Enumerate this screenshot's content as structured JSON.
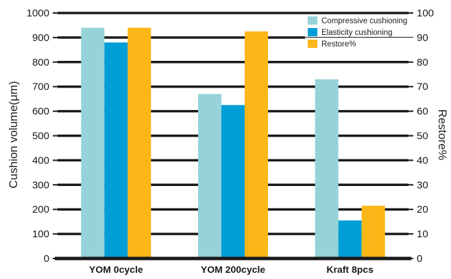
{
  "chart_data": {
    "type": "bar",
    "categories": [
      "YOM 0cycle",
      "YOM 200cycle",
      "Kraft 8pcs"
    ],
    "series": [
      {
        "name": "Compressive cushioning",
        "axis": "left",
        "color": "#96d3d9",
        "values": [
          940,
          670,
          730
        ]
      },
      {
        "name": "Elasticity cushioning",
        "axis": "left",
        "color": "#009ed6",
        "values": [
          880,
          625,
          155
        ]
      },
      {
        "name": "Restore%",
        "axis": "right",
        "color": "#fbb617",
        "values": [
          94,
          92.5,
          21.5
        ]
      }
    ],
    "ylabel": "Cushion volume(μm)",
    "y2label": "Restore%",
    "ylim": [
      0,
      1000
    ],
    "y2lim": [
      0,
      100
    ],
    "yticks": [
      "0",
      "100",
      "200",
      "300",
      "400",
      "500",
      "600",
      "700",
      "800",
      "900",
      "1000"
    ],
    "y2ticks": [
      "0",
      "10",
      "20",
      "30",
      "40",
      "50",
      "60",
      "70",
      "80",
      "90",
      "100"
    ],
    "grid": true,
    "legend": "top-right"
  }
}
